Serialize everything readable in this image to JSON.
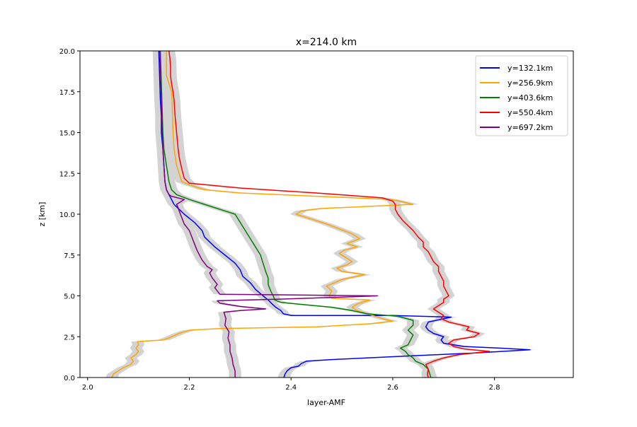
{
  "chart_data": {
    "type": "line",
    "title": "x=214.0 km",
    "xlabel": "layer-AMF",
    "ylabel": "z [km]",
    "xlim": [
      1.985,
      2.955
    ],
    "ylim": [
      0,
      20
    ],
    "xticks": [
      2.0,
      2.2,
      2.4,
      2.6,
      2.8
    ],
    "xtick_labels": [
      "2.0",
      "2.2",
      "2.4",
      "2.6",
      "2.8"
    ],
    "yticks": [
      0,
      2.5,
      5,
      7.5,
      10,
      12.5,
      15,
      17.5,
      20
    ],
    "ytick_labels": [
      "0.0",
      "2.5",
      "5.0",
      "7.5",
      "10.0",
      "12.5",
      "15.0",
      "17.5",
      "20.0"
    ],
    "grid": false,
    "legend_position": "top-right",
    "uncertainty_band": {
      "color": "#d3d3d3",
      "halfwidth": 0.012
    },
    "series": [
      {
        "name": "y=132.1km",
        "color": "#0000ff",
        "points": [
          [
            2.386,
            0
          ],
          [
            2.388,
            0.2
          ],
          [
            2.392,
            0.4
          ],
          [
            2.4,
            0.6
          ],
          [
            2.415,
            0.7
          ],
          [
            2.42,
            0.85
          ],
          [
            2.43,
            1.0
          ],
          [
            2.48,
            1.1
          ],
          [
            2.55,
            1.2
          ],
          [
            2.65,
            1.35
          ],
          [
            2.76,
            1.5
          ],
          [
            2.87,
            1.7
          ],
          [
            2.81,
            1.8
          ],
          [
            2.74,
            1.9
          ],
          [
            2.7,
            2.1
          ],
          [
            2.695,
            2.3
          ],
          [
            2.7,
            2.5
          ],
          [
            2.68,
            2.7
          ],
          [
            2.67,
            2.9
          ],
          [
            2.665,
            3.1
          ],
          [
            2.67,
            3.4
          ],
          [
            2.7,
            3.6
          ],
          [
            2.715,
            3.7
          ],
          [
            2.6,
            3.8
          ],
          [
            2.4,
            3.8
          ],
          [
            2.385,
            3.9
          ],
          [
            2.38,
            4.1
          ],
          [
            2.37,
            4.3
          ],
          [
            2.363,
            4.5
          ],
          [
            2.355,
            4.75
          ],
          [
            2.345,
            5.0
          ],
          [
            2.33,
            5.4
          ],
          [
            2.32,
            5.8
          ],
          [
            2.305,
            6.2
          ],
          [
            2.3,
            6.6
          ],
          [
            2.29,
            7.0
          ],
          [
            2.27,
            7.5
          ],
          [
            2.25,
            8.0
          ],
          [
            2.23,
            8.6
          ],
          [
            2.225,
            9.0
          ],
          [
            2.21,
            9.5
          ],
          [
            2.19,
            10.0
          ],
          [
            2.18,
            10.3
          ],
          [
            2.17,
            10.6
          ],
          [
            2.165,
            10.9
          ],
          [
            2.16,
            11.2
          ],
          [
            2.155,
            11.5
          ],
          [
            2.152,
            12.0
          ],
          [
            2.15,
            13.0
          ],
          [
            2.148,
            14.0
          ],
          [
            2.145,
            15.0
          ],
          [
            2.145,
            16.0
          ],
          [
            2.143,
            17.0
          ],
          [
            2.142,
            18.0
          ],
          [
            2.141,
            19.0
          ],
          [
            2.14,
            20.0
          ]
        ]
      },
      {
        "name": "y=256.9km",
        "color": "#ffa500",
        "points": [
          [
            2.048,
            0
          ],
          [
            2.05,
            0.2
          ],
          [
            2.06,
            0.4
          ],
          [
            2.07,
            0.6
          ],
          [
            2.085,
            0.8
          ],
          [
            2.09,
            1.0
          ],
          [
            2.085,
            1.2
          ],
          [
            2.095,
            1.4
          ],
          [
            2.1,
            1.6
          ],
          [
            2.095,
            1.8
          ],
          [
            2.1,
            2.0
          ],
          [
            2.098,
            2.2
          ],
          [
            2.15,
            2.3
          ],
          [
            2.165,
            2.5
          ],
          [
            2.18,
            2.7
          ],
          [
            2.2,
            2.9
          ],
          [
            2.26,
            3.0
          ],
          [
            2.45,
            3.1
          ],
          [
            2.56,
            3.3
          ],
          [
            2.6,
            3.45
          ],
          [
            2.58,
            3.6
          ],
          [
            2.55,
            3.9
          ],
          [
            2.53,
            4.1
          ],
          [
            2.52,
            4.3
          ],
          [
            2.53,
            4.5
          ],
          [
            2.555,
            4.75
          ],
          [
            2.48,
            4.85
          ],
          [
            2.475,
            5.0
          ],
          [
            2.48,
            5.3
          ],
          [
            2.47,
            5.6
          ],
          [
            2.485,
            5.8
          ],
          [
            2.5,
            6.0
          ],
          [
            2.545,
            6.3
          ],
          [
            2.5,
            6.5
          ],
          [
            2.49,
            6.7
          ],
          [
            2.51,
            6.9
          ],
          [
            2.52,
            7.1
          ],
          [
            2.505,
            7.4
          ],
          [
            2.495,
            7.6
          ],
          [
            2.505,
            7.8
          ],
          [
            2.53,
            8.0
          ],
          [
            2.51,
            8.2
          ],
          [
            2.535,
            8.5
          ],
          [
            2.52,
            8.8
          ],
          [
            2.495,
            9.1
          ],
          [
            2.47,
            9.4
          ],
          [
            2.44,
            9.7
          ],
          [
            2.41,
            10.0
          ],
          [
            2.42,
            10.2
          ],
          [
            2.46,
            10.35
          ],
          [
            2.64,
            10.6
          ],
          [
            2.6,
            10.9
          ],
          [
            2.45,
            11.1
          ],
          [
            2.3,
            11.3
          ],
          [
            2.23,
            11.5
          ],
          [
            2.2,
            11.8
          ],
          [
            2.185,
            12.0
          ],
          [
            2.18,
            12.5
          ],
          [
            2.175,
            13.0
          ],
          [
            2.17,
            14.0
          ],
          [
            2.168,
            15.0
          ],
          [
            2.167,
            16.0
          ],
          [
            2.166,
            17.0
          ],
          [
            2.165,
            17.5
          ],
          [
            2.16,
            18.0
          ],
          [
            2.155,
            18.5
          ],
          [
            2.155,
            19.0
          ],
          [
            2.155,
            20.0
          ]
        ]
      },
      {
        "name": "y=403.6km",
        "color": "#008000",
        "points": [
          [
            2.675,
            0
          ],
          [
            2.673,
            0.2
          ],
          [
            2.67,
            0.5
          ],
          [
            2.66,
            0.8
          ],
          [
            2.645,
            1.0
          ],
          [
            2.64,
            1.2
          ],
          [
            2.63,
            1.4
          ],
          [
            2.625,
            1.6
          ],
          [
            2.615,
            1.8
          ],
          [
            2.63,
            2.0
          ],
          [
            2.635,
            2.3
          ],
          [
            2.64,
            2.6
          ],
          [
            2.63,
            2.9
          ],
          [
            2.64,
            3.2
          ],
          [
            2.64,
            3.5
          ],
          [
            2.61,
            3.75
          ],
          [
            2.55,
            3.9
          ],
          [
            2.52,
            4.1
          ],
          [
            2.48,
            4.3
          ],
          [
            2.43,
            4.45
          ],
          [
            2.38,
            4.6
          ],
          [
            2.368,
            4.75
          ],
          [
            2.365,
            5.0
          ],
          [
            2.36,
            5.3
          ],
          [
            2.355,
            5.7
          ],
          [
            2.355,
            6.1
          ],
          [
            2.35,
            6.5
          ],
          [
            2.345,
            7.0
          ],
          [
            2.34,
            7.5
          ],
          [
            2.33,
            8.0
          ],
          [
            2.32,
            8.5
          ],
          [
            2.31,
            9.0
          ],
          [
            2.3,
            9.5
          ],
          [
            2.29,
            10.0
          ],
          [
            2.26,
            10.3
          ],
          [
            2.23,
            10.6
          ],
          [
            2.2,
            10.9
          ],
          [
            2.175,
            11.2
          ],
          [
            2.165,
            11.5
          ],
          [
            2.16,
            12.0
          ],
          [
            2.155,
            13.0
          ],
          [
            2.15,
            14.0
          ],
          [
            2.148,
            15.0
          ],
          [
            2.147,
            16.0
          ],
          [
            2.146,
            17.0
          ],
          [
            2.145,
            18.0
          ],
          [
            2.144,
            19.0
          ],
          [
            2.143,
            20.0
          ]
        ]
      },
      {
        "name": "y=550.4km",
        "color": "#ff0000",
        "points": [
          [
            2.67,
            0
          ],
          [
            2.668,
            0.2
          ],
          [
            2.67,
            0.5
          ],
          [
            2.665,
            0.8
          ],
          [
            2.68,
            1.0
          ],
          [
            2.7,
            1.2
          ],
          [
            2.73,
            1.4
          ],
          [
            2.79,
            1.6
          ],
          [
            2.74,
            1.75
          ],
          [
            2.72,
            1.9
          ],
          [
            2.71,
            2.1
          ],
          [
            2.72,
            2.3
          ],
          [
            2.76,
            2.5
          ],
          [
            2.77,
            2.7
          ],
          [
            2.745,
            2.9
          ],
          [
            2.75,
            3.1
          ],
          [
            2.73,
            3.25
          ],
          [
            2.71,
            3.4
          ],
          [
            2.695,
            3.6
          ],
          [
            2.7,
            3.8
          ],
          [
            2.69,
            4.0
          ],
          [
            2.68,
            4.2
          ],
          [
            2.69,
            4.4
          ],
          [
            2.7,
            4.6
          ],
          [
            2.7,
            4.8
          ],
          [
            2.71,
            5.0
          ],
          [
            2.705,
            5.3
          ],
          [
            2.7,
            5.6
          ],
          [
            2.7,
            5.9
          ],
          [
            2.695,
            6.2
          ],
          [
            2.69,
            6.5
          ],
          [
            2.69,
            6.8
          ],
          [
            2.68,
            7.1
          ],
          [
            2.675,
            7.4
          ],
          [
            2.67,
            7.7
          ],
          [
            2.66,
            8.0
          ],
          [
            2.66,
            8.3
          ],
          [
            2.65,
            8.6
          ],
          [
            2.64,
            9.0
          ],
          [
            2.63,
            9.3
          ],
          [
            2.62,
            9.6
          ],
          [
            2.61,
            10.0
          ],
          [
            2.605,
            10.3
          ],
          [
            2.605,
            10.6
          ],
          [
            2.6,
            10.8
          ],
          [
            2.58,
            11.0
          ],
          [
            2.45,
            11.3
          ],
          [
            2.3,
            11.6
          ],
          [
            2.2,
            11.9
          ],
          [
            2.19,
            12.2
          ],
          [
            2.185,
            12.8
          ],
          [
            2.18,
            13.5
          ],
          [
            2.178,
            14.0
          ],
          [
            2.175,
            15.0
          ],
          [
            2.172,
            16.0
          ],
          [
            2.17,
            17.0
          ],
          [
            2.168,
            17.5
          ],
          [
            2.165,
            18.0
          ],
          [
            2.163,
            18.5
          ],
          [
            2.163,
            19.0
          ],
          [
            2.162,
            19.5
          ],
          [
            2.16,
            20.0
          ]
        ]
      },
      {
        "name": "y=697.2km",
        "color": "#800080",
        "points": [
          [
            2.29,
            0
          ],
          [
            2.29,
            0.4
          ],
          [
            2.286,
            0.8
          ],
          [
            2.284,
            1.2
          ],
          [
            2.28,
            1.6
          ],
          [
            2.28,
            2.0
          ],
          [
            2.276,
            2.4
          ],
          [
            2.278,
            2.8
          ],
          [
            2.27,
            3.2
          ],
          [
            2.272,
            3.6
          ],
          [
            2.268,
            4.0
          ],
          [
            2.3,
            4.1
          ],
          [
            2.35,
            4.2
          ],
          [
            2.3,
            4.35
          ],
          [
            2.26,
            4.55
          ],
          [
            2.255,
            4.7
          ],
          [
            2.38,
            4.8
          ],
          [
            2.57,
            5.0
          ],
          [
            2.26,
            5.1
          ],
          [
            2.255,
            5.3
          ],
          [
            2.25,
            5.5
          ],
          [
            2.255,
            5.7
          ],
          [
            2.25,
            5.9
          ],
          [
            2.245,
            6.1
          ],
          [
            2.24,
            6.4
          ],
          [
            2.245,
            6.6
          ],
          [
            2.235,
            6.8
          ],
          [
            2.23,
            7.0
          ],
          [
            2.225,
            7.2
          ],
          [
            2.22,
            7.5
          ],
          [
            2.215,
            7.8
          ],
          [
            2.21,
            8.2
          ],
          [
            2.205,
            8.6
          ],
          [
            2.2,
            9.0
          ],
          [
            2.19,
            9.4
          ],
          [
            2.185,
            9.8
          ],
          [
            2.18,
            10.2
          ],
          [
            2.178,
            10.4
          ],
          [
            2.175,
            10.6
          ],
          [
            2.19,
            10.9
          ],
          [
            2.165,
            11.1
          ],
          [
            2.16,
            11.2
          ],
          [
            2.155,
            11.5
          ],
          [
            2.152,
            12.0
          ],
          [
            2.15,
            13.0
          ],
          [
            2.148,
            14.0
          ],
          [
            2.147,
            15.0
          ],
          [
            2.146,
            16.0
          ],
          [
            2.145,
            17.0
          ],
          [
            2.144,
            18.0
          ],
          [
            2.143,
            19.0
          ],
          [
            2.142,
            20.0
          ]
        ]
      }
    ]
  }
}
